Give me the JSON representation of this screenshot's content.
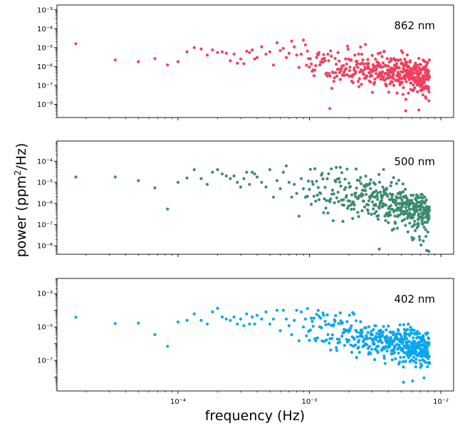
{
  "figure": {
    "ylabel": "power (ppm",
    "ylabel_sup": "2",
    "ylabel_tail": "/Hz)",
    "xlabel": "frequency (Hz)"
  },
  "chart_data": [
    {
      "type": "scatter",
      "panel_label": "862 nm",
      "color": "#f0405e",
      "x_scale": "log",
      "y_scale": "log",
      "xlim": [
        1.2e-05,
        0.0125
      ],
      "ylim": [
        2e-09,
        0.0018
      ],
      "ytick_values": [
        1e-08,
        1e-07,
        1e-06,
        1e-05,
        0.0001,
        0.001
      ],
      "ytick_labels": [
        "10⁻⁸",
        "10⁻⁷",
        "10⁻⁶",
        "10⁻⁵",
        "10⁻⁴",
        "10⁻³"
      ],
      "show_xticklabels": false,
      "seed": 11,
      "x": [
        1.67e-05,
        3.33e-05,
        5e-05,
        6.67e-05,
        8.33e-05,
        0.0001,
        0.000117,
        0.000133,
        0.00015,
        0.000167,
        0.000183,
        0.0002,
        0.000217,
        0.000233,
        0.00025,
        0.000267,
        0.000283,
        0.0003,
        0.000317,
        0.000333,
        0.00035,
        0.000367,
        0.000383,
        0.0004,
        0.000433,
        0.000467,
        0.0005,
        0.000533,
        0.000567,
        0.0006,
        0.000633,
        0.000667,
        0.0007,
        0.000733,
        0.000767,
        0.0008,
        0.000833,
        0.000867,
        0.0009,
        0.000933
      ],
      "y": [
        1.6e-05,
        2.2e-06,
        1.8e-06,
        2.6e-06,
        1.2e-06,
        1.8e-06,
        6e-06,
        1e-05,
        8.5e-06,
        4e-06,
        7.5e-06,
        5.5e-06,
        6e-06,
        5e-06,
        2e-06,
        4.5e-06,
        1.5e-06,
        2.5e-06,
        1.4e-06,
        6.5e-06,
        5.5e-06,
        7.5e-06,
        2.5e-06,
        3e-06,
        1.1e-05,
        4.5e-06,
        6e-06,
        1.2e-06,
        1.8e-05,
        7e-06,
        9e-06,
        3e-06,
        5e-06,
        2.2e-05,
        1.1e-05,
        4e-06,
        9e-07,
        4.5e-06,
        2.5e-05,
        1.4e-05
      ],
      "cloud": {
        "f_start": 0.00095,
        "f_end": 0.0082,
        "df": 1.6667e-05,
        "y_start": 1.6e-06,
        "y_end": 3e-07,
        "spread_decades": 0.48
      },
      "sparse_lows": [
        {
          "x": 0.00143,
          "y": 6e-09
        },
        {
          "x": 0.0054,
          "y": 4.5e-09
        },
        {
          "x": 0.0068,
          "y": 5e-09
        }
      ]
    },
    {
      "type": "scatter",
      "panel_label": "500 nm",
      "color": "#3d8c6e",
      "x_scale": "log",
      "y_scale": "log",
      "xlim": [
        1.2e-05,
        0.0125
      ],
      "ylim": [
        4e-09,
        0.0009
      ],
      "ytick_values": [
        1e-08,
        1e-07,
        1e-06,
        1e-05,
        0.0001
      ],
      "ytick_labels": [
        "10⁻⁸",
        "10⁻⁷",
        "10⁻⁶",
        "10⁻⁵",
        "10⁻⁴"
      ],
      "show_xticklabels": false,
      "seed": 23,
      "x": [
        1.67e-05,
        3.33e-05,
        5e-05,
        6.67e-05,
        8.33e-05,
        0.0001,
        0.000117,
        0.000133,
        0.00015,
        0.000167,
        0.000183,
        0.0002,
        0.000217,
        0.000233,
        0.00025,
        0.000267,
        0.000283,
        0.0003,
        0.000317,
        0.000333,
        0.00035,
        0.000367,
        0.000383,
        0.0004,
        0.000433,
        0.000467,
        0.0005,
        0.000533,
        0.000567,
        0.0006,
        0.000633,
        0.000667,
        0.0007,
        0.000733,
        0.000767,
        0.0008,
        0.000833,
        0.000867,
        0.0009,
        0.000933
      ],
      "y": [
        1.8e-05,
        1.8e-05,
        1.2e-05,
        5.5e-06,
        5.5e-07,
        1e-05,
        1.6e-05,
        4e-05,
        1.5e-05,
        8e-06,
        3e-05,
        4e-05,
        2.5e-05,
        2e-05,
        1.5e-05,
        2e-05,
        1e-05,
        6e-06,
        1.5e-05,
        3e-05,
        8e-06,
        3e-05,
        2.5e-05,
        1.8e-05,
        1e-05,
        6e-06,
        4e-05,
        2e-06,
        1.2e-05,
        5e-06,
        3e-05,
        6e-05,
        1e-05,
        2e-06,
        8e-06,
        3e-06,
        2.5e-07,
        1.5e-05,
        5e-06,
        2e-06
      ],
      "cloud": {
        "f_start": 0.00095,
        "f_end": 0.0082,
        "df": 1.6667e-05,
        "y_start": 8e-06,
        "y_end": 3e-07,
        "spread_decades": 0.52
      },
      "sparse_lows": [
        {
          "x": 0.0034,
          "y": 7e-09
        },
        {
          "x": 0.0078,
          "y": 6e-09
        },
        {
          "x": 0.0081,
          "y": 5.5e-09
        }
      ]
    },
    {
      "type": "scatter",
      "panel_label": "402 nm",
      "color": "#0aa5f0",
      "x_scale": "log",
      "y_scale": "log",
      "xlim": [
        1.2e-05,
        0.0125
      ],
      "ylim": [
        1.5e-09,
        0.008
      ],
      "ytick_values": [
        1e-07,
        1e-05,
        0.001
      ],
      "ytick_labels": [
        "10⁻⁷",
        "10⁻⁵",
        "10⁻³"
      ],
      "show_xticklabels": true,
      "xtick_values": [
        0.0001,
        0.001,
        0.01
      ],
      "xtick_labels": [
        "10⁻⁴",
        "10⁻³",
        "10⁻²"
      ],
      "seed": 37,
      "x": [
        1.67e-05,
        3.33e-05,
        5e-05,
        6.67e-05,
        8.33e-05,
        0.0001,
        0.000117,
        0.000133,
        0.00015,
        0.000167,
        0.000183,
        0.0002,
        0.000217,
        0.000233,
        0.00025,
        0.000267,
        0.000283,
        0.0003,
        0.000317,
        0.000333,
        0.00035,
        0.000367,
        0.000383,
        0.0004,
        0.000433,
        0.000467,
        0.0005,
        0.000533,
        0.000567,
        0.0006,
        0.000633,
        0.000667,
        0.0007,
        0.000733,
        0.000767,
        0.0008,
        0.000833,
        0.000867,
        0.0009,
        0.000933
      ],
      "y": [
        3.8e-05,
        1.6e-05,
        1.7e-05,
        3.5e-06,
        7e-07,
        2e-05,
        2.5e-05,
        6e-05,
        2.5e-05,
        1.5e-05,
        8e-05,
        0.00013,
        4e-05,
        3e-05,
        2.5e-05,
        4e-05,
        1.5e-05,
        3e-05,
        1.2e-05,
        6e-05,
        1.5e-05,
        4e-05,
        1.5e-05,
        5e-05,
        3e-05,
        8e-05,
        1.5e-05,
        3e-05,
        0.0001,
        6e-06,
        0.0001,
        3e-05,
        1.2e-05,
        3.5e-06,
        2.5e-05,
        0.0001,
        1.5e-06,
        8e-05,
        1e-05,
        3e-05
      ],
      "cloud": {
        "f_start": 0.00095,
        "f_end": 0.0082,
        "df": 1.6667e-05,
        "y_start": 1.2e-05,
        "y_end": 4e-07,
        "spread_decades": 0.55
      },
      "sparse_lows": [
        {
          "x": 0.0052,
          "y": 5e-09
        },
        {
          "x": 0.0061,
          "y": 6e-09
        }
      ]
    }
  ]
}
